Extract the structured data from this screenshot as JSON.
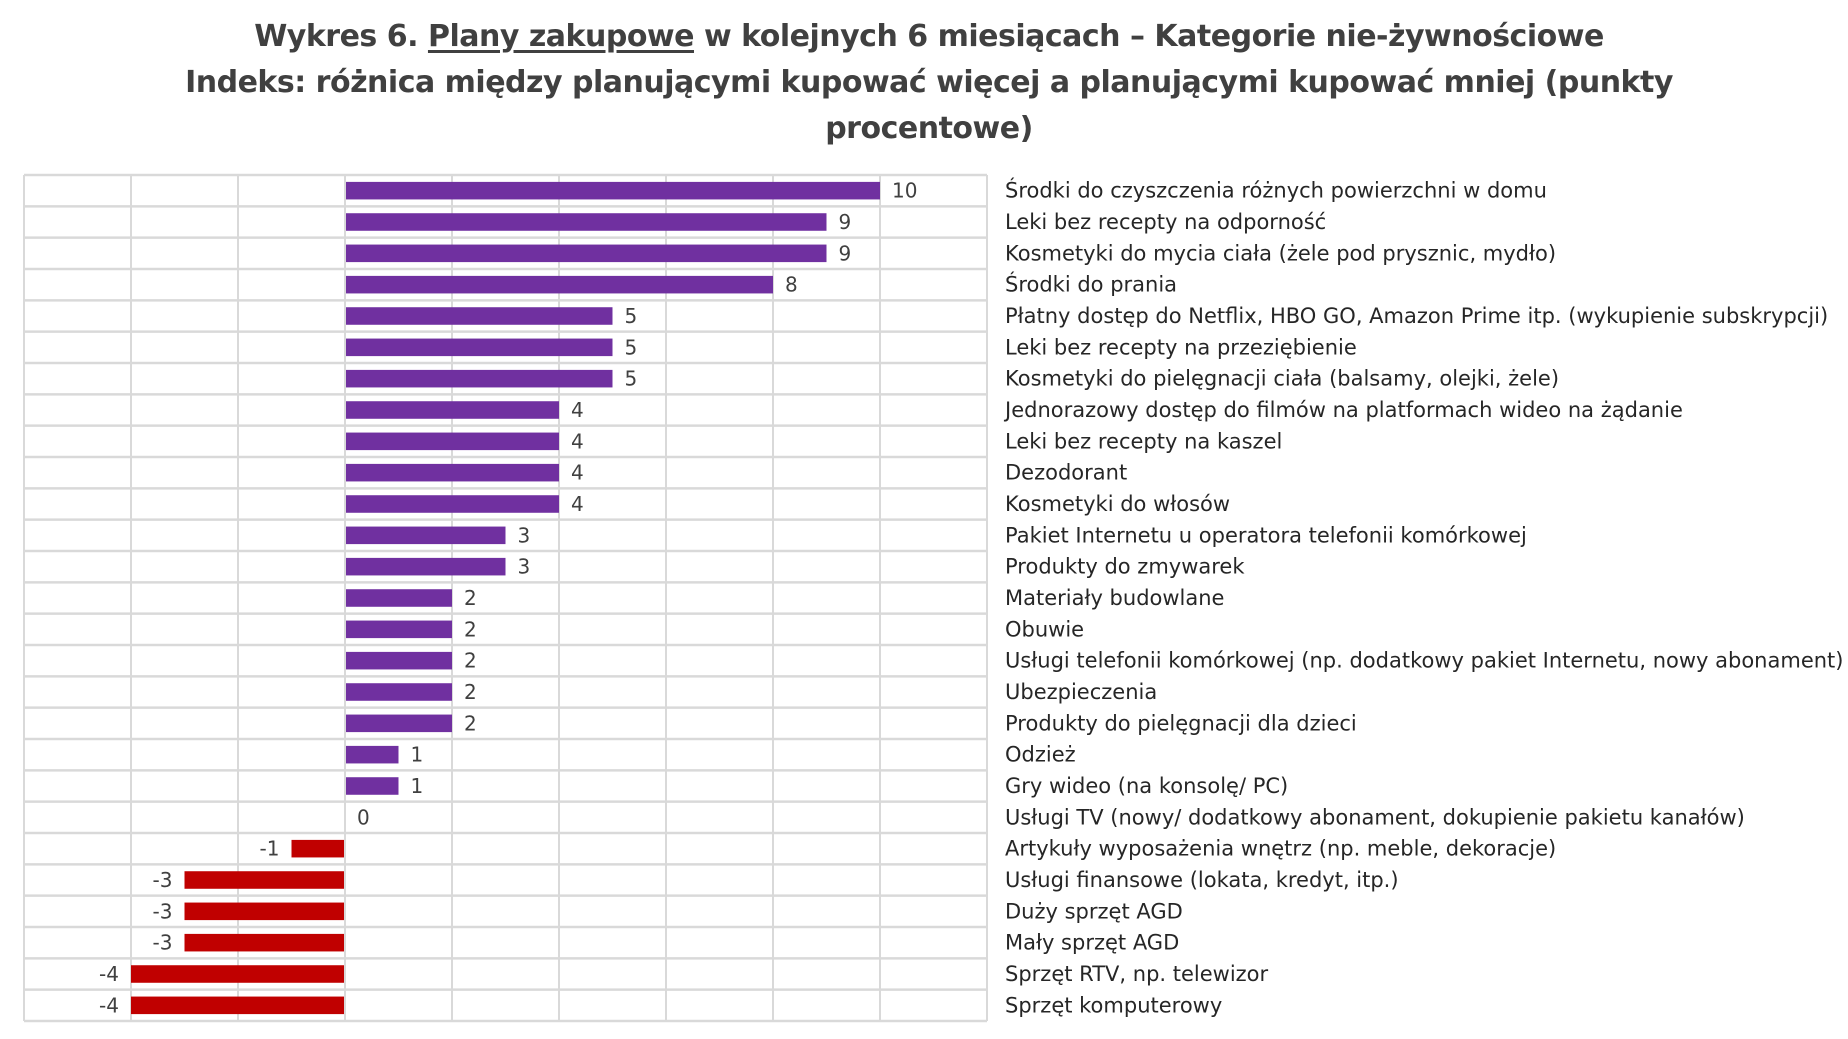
{
  "chart_data": {
    "type": "bar",
    "orientation": "horizontal",
    "title": {
      "prefix": "Wykres 6. ",
      "underlined": "Plany zakupowe",
      "suffix": " w kolejnych 6 miesiącach – Kategorie nie-żywnościowe",
      "subtitle_line1": "Indeks: różnica między planującymi kupować więcej a planującymi kupować mniej (punkty",
      "subtitle_line2": "procentowe)"
    },
    "xlabel": "",
    "ylabel": "",
    "xlim": [
      -6,
      12
    ],
    "grid_step": 2,
    "grid": true,
    "legend": "none",
    "positive_color": "#7030A0",
    "negative_color": "#C00000",
    "grid_color": "#D9D9D9",
    "categories": [
      "Środki do czyszczenia różnych powierzchni w domu",
      "Leki bez recepty na odporność",
      "Kosmetyki do mycia ciała (żele pod prysznic, mydło)",
      "Środki do prania",
      "Płatny dostęp do Netflix, HBO GO, Amazon Prime itp. (wykupienie subskrypcji)",
      "Leki bez recepty na przeziębienie",
      "Kosmetyki do pielęgnacji ciała (balsamy, olejki, żele)",
      "Jednorazowy dostęp do filmów na platformach wideo na żądanie",
      "Leki bez recepty na kaszel",
      "Dezodorant",
      "Kosmetyki do włosów",
      "Pakiet Internetu u operatora telefonii komórkowej",
      "Produkty do zmywarek",
      "Materiały budowlane",
      "Obuwie",
      "Usługi telefonii komórkowej (np. dodatkowy pakiet Internetu, nowy abonament)",
      "Ubezpieczenia",
      "Produkty do pielęgnacji dla dzieci",
      "Odzież",
      "Gry wideo (na konsolę/ PC)",
      "Usługi TV (nowy/ dodatkowy abonament, dokupienie pakietu kanałów)",
      "Artykuły wyposażenia wnętrz (np. meble, dekoracje)",
      "Usługi finansowe (lokata, kredyt, itp.)",
      "Duży sprzęt AGD",
      "Mały sprzęt AGD",
      "Sprzęt RTV, np. telewizor",
      "Sprzęt komputerowy"
    ],
    "values": [
      10,
      9,
      9,
      8,
      5,
      5,
      5,
      4,
      4,
      4,
      4,
      3,
      3,
      2,
      2,
      2,
      2,
      2,
      1,
      1,
      0,
      -1,
      -3,
      -3,
      -3,
      -4,
      -4
    ]
  }
}
